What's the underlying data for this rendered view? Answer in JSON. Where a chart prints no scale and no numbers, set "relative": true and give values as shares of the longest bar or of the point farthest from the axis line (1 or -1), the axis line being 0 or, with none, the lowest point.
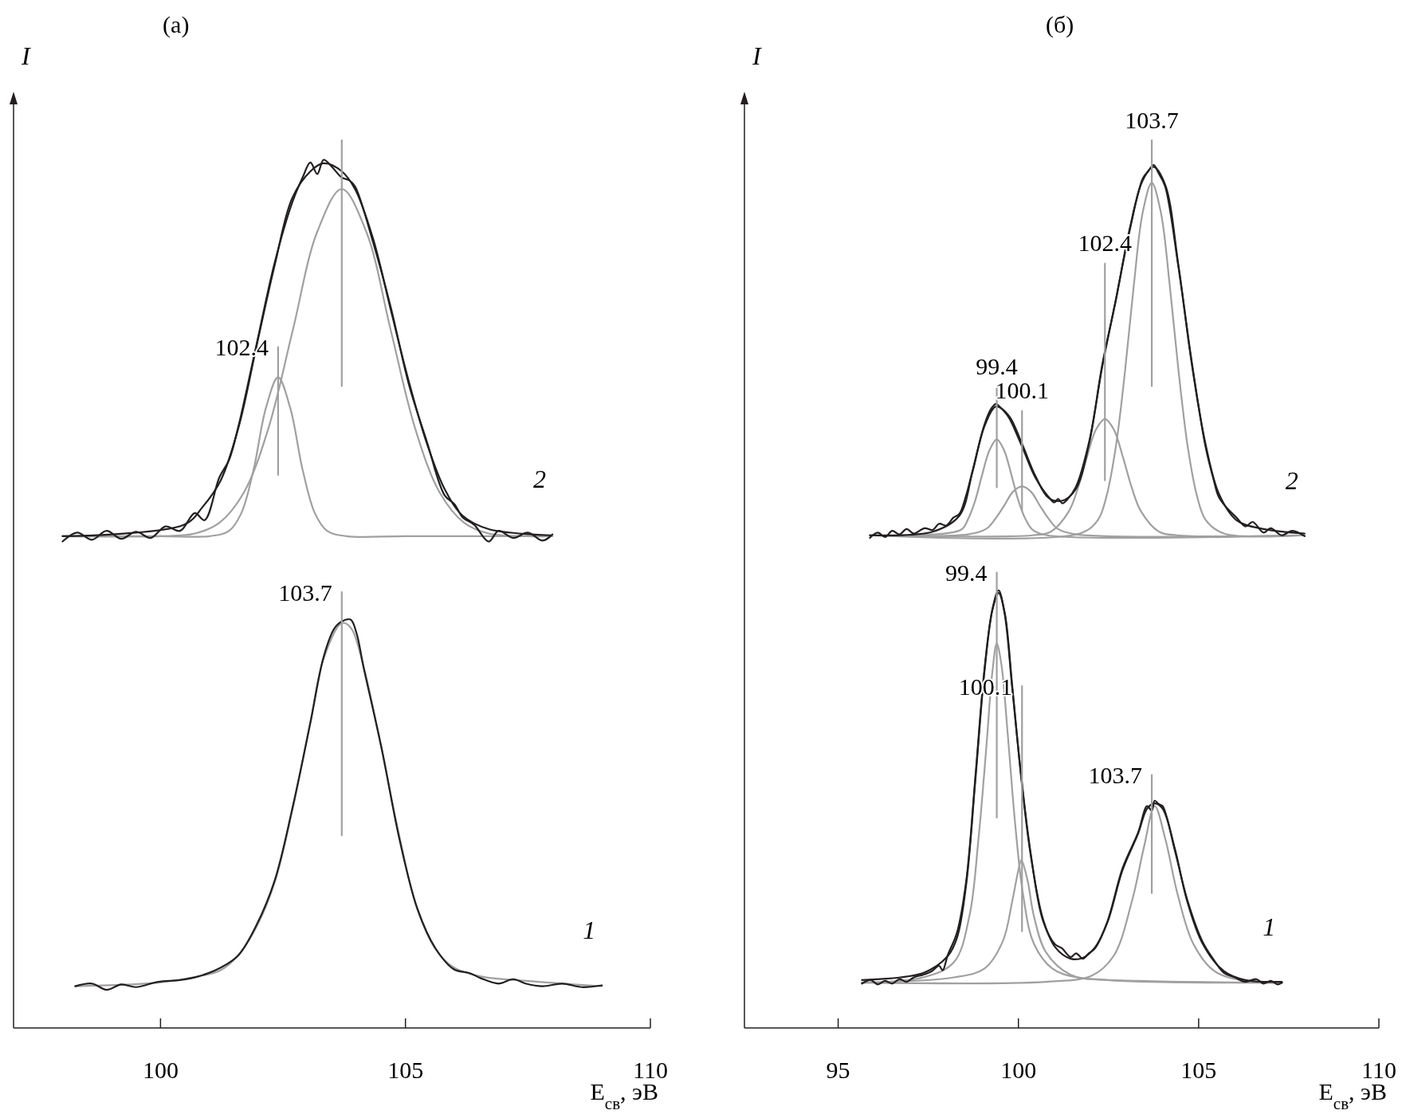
{
  "chart_data": [
    {
      "type": "line",
      "title": "(а)",
      "xlabel": "E$_{св}$, эВ",
      "ylabel": "I",
      "relative": true,
      "xlim": [
        97,
        110
      ],
      "xticks": [
        100,
        105,
        110
      ],
      "series": [
        {
          "color": "#a0a0a0",
          "x": [
            98.0,
            100,
            101,
            101.4,
            101.65,
            101.9,
            102.15,
            102.4,
            102.65,
            102.9,
            103.15,
            103.4,
            103.8,
            105,
            108.0
          ],
          "values": [
            0.554,
            0.554,
            0.554,
            0.56,
            0.58,
            0.629,
            0.698,
            0.733,
            0.698,
            0.629,
            0.58,
            0.56,
            0.554,
            0.554,
            0.554
          ]
        },
        {
          "color": "#a0a0a0",
          "x": [
            98.0,
            100,
            100.7,
            101.2,
            101.7,
            102.2,
            102.7,
            103.2,
            103.7,
            104.2,
            104.7,
            105.2,
            105.7,
            106.2,
            106.7,
            107.5,
            108.0
          ],
          "values": [
            0.554,
            0.554,
            0.557,
            0.569,
            0.603,
            0.675,
            0.786,
            0.897,
            0.945,
            0.897,
            0.786,
            0.675,
            0.603,
            0.569,
            0.557,
            0.554,
            0.554
          ]
        },
        {
          "color": "#231f20",
          "x": [
            98.0,
            100.49,
            100.86,
            101.23,
            101.6,
            101.96,
            102.33,
            102.69,
            103.06,
            103.33,
            103.7,
            103.97,
            104.34,
            104.7,
            105.07,
            105.44,
            105.8,
            106.17,
            106.7,
            107.96
          ],
          "values": [
            0.554,
            0.567,
            0.587,
            0.617,
            0.678,
            0.768,
            0.859,
            0.935,
            0.965,
            0.974,
            0.965,
            0.945,
            0.889,
            0.809,
            0.728,
            0.658,
            0.607,
            0.577,
            0.562,
            0.555
          ]
        },
        {
          "name": "2",
          "color": "#231f20",
          "x": [
            98.0,
            98.3,
            98.6,
            98.9,
            99.2,
            99.5,
            99.8,
            100.1,
            100.4,
            100.7,
            100.9,
            101.2,
            101.4,
            101.6,
            101.96,
            102.33,
            102.69,
            102.9,
            103.06,
            103.2,
            103.33,
            103.5,
            103.7,
            103.85,
            103.97,
            104.34,
            104.7,
            105.07,
            105.44,
            105.8,
            106.0,
            106.17,
            106.4,
            106.7,
            106.9,
            107.2,
            107.5,
            107.8,
            108.0
          ],
          "values": [
            0.548,
            0.558,
            0.55,
            0.56,
            0.551,
            0.559,
            0.552,
            0.565,
            0.56,
            0.58,
            0.572,
            0.62,
            0.64,
            0.68,
            0.77,
            0.862,
            0.93,
            0.958,
            0.975,
            0.962,
            0.978,
            0.97,
            0.958,
            0.955,
            0.948,
            0.885,
            0.812,
            0.725,
            0.66,
            0.6,
            0.59,
            0.575,
            0.567,
            0.548,
            0.56,
            0.552,
            0.558,
            0.549,
            0.556
          ]
        },
        {
          "color": "#a0a0a0",
          "x": [
            98.26,
            99.95,
            100.77,
            101.23,
            101.59,
            101.96,
            102.33,
            102.69,
            103.06,
            103.33,
            103.7,
            103.88,
            104.15,
            104.51,
            104.88,
            105.24,
            105.61,
            105.99,
            106.54,
            107.45,
            109.01
          ],
          "values": [
            0.047,
            0.051,
            0.058,
            0.065,
            0.082,
            0.114,
            0.164,
            0.245,
            0.345,
            0.416,
            0.456,
            0.451,
            0.406,
            0.315,
            0.215,
            0.134,
            0.089,
            0.068,
            0.058,
            0.053,
            0.047
          ]
        },
        {
          "name": "1",
          "color": "#231f20",
          "x": [
            98.26,
            98.6,
            98.9,
            99.2,
            99.5,
            99.95,
            100.4,
            100.77,
            101.23,
            101.59,
            101.96,
            102.33,
            102.69,
            103.06,
            103.33,
            103.55,
            103.7,
            103.88,
            104.0,
            104.15,
            104.51,
            104.88,
            105.24,
            105.61,
            105.99,
            106.3,
            106.54,
            106.9,
            107.2,
            107.45,
            107.8,
            108.2,
            108.6,
            109.01
          ],
          "values": [
            0.047,
            0.05,
            0.043,
            0.049,
            0.046,
            0.052,
            0.054,
            0.058,
            0.068,
            0.082,
            0.116,
            0.166,
            0.247,
            0.344,
            0.418,
            0.45,
            0.458,
            0.46,
            0.445,
            0.405,
            0.316,
            0.212,
            0.135,
            0.09,
            0.066,
            0.062,
            0.056,
            0.05,
            0.055,
            0.05,
            0.047,
            0.05,
            0.046,
            0.048
          ]
        },
        {
          "color": "#a0a0a0",
          "x": [
            103.7,
            103.7
          ],
          "values": [
            1.0,
            0.723
          ]
        },
        {
          "color": "#a0a0a0",
          "x": [
            102.4,
            102.4
          ],
          "values": [
            0.767,
            0.623
          ]
        },
        {
          "color": "#a0a0a0",
          "x": [
            103.7,
            103.7
          ],
          "values": [
            0.491,
            0.217
          ]
        }
      ],
      "annotations": [
        {
          "text": "102.4",
          "x": 102.4,
          "y": 0.767
        },
        {
          "text": "103.7",
          "x": 103.7,
          "y": 0.491
        }
      ]
    },
    {
      "type": "line",
      "title": "(б)",
      "xlabel": "E$_{св}$, эВ",
      "ylabel": "I",
      "relative": true,
      "xlim": [
        92.4,
        110
      ],
      "xticks": [
        95,
        100,
        105,
        110
      ],
      "series": [
        {
          "color": "#a0a0a0",
          "x": [
            95.88,
            98.4,
            98.6,
            98.8,
            99.0,
            99.2,
            99.4,
            99.6,
            99.8,
            100.0,
            100.2,
            100.4,
            100.8,
            107.94
          ],
          "values": [
            0.555,
            0.561,
            0.573,
            0.594,
            0.624,
            0.651,
            0.663,
            0.651,
            0.624,
            0.594,
            0.573,
            0.561,
            0.555,
            0.555
          ]
        },
        {
          "color": "#a0a0a0",
          "x": [
            95.88,
            98.6,
            99.1,
            99.35,
            99.6,
            99.85,
            100.1,
            100.35,
            100.6,
            100.85,
            101.1,
            101.6,
            107.94
          ],
          "values": [
            0.555,
            0.556,
            0.562,
            0.573,
            0.588,
            0.604,
            0.61,
            0.604,
            0.588,
            0.573,
            0.562,
            0.556,
            0.555
          ]
        },
        {
          "color": "#a0a0a0",
          "x": [
            95.88,
            100.4,
            100.9,
            101.4,
            101.65,
            101.9,
            102.15,
            102.4,
            102.65,
            102.9,
            103.15,
            103.4,
            103.9,
            104.4,
            107.94
          ],
          "values": [
            0.555,
            0.555,
            0.559,
            0.582,
            0.608,
            0.643,
            0.674,
            0.686,
            0.674,
            0.643,
            0.608,
            0.582,
            0.559,
            0.555,
            0.555
          ]
        },
        {
          "color": "#a0a0a0",
          "x": [
            95.88,
            101.7,
            102.2,
            102.45,
            102.7,
            102.95,
            103.2,
            103.45,
            103.7,
            103.95,
            104.2,
            104.45,
            104.7,
            104.95,
            105.2,
            105.7,
            107.94
          ],
          "values": [
            0.555,
            0.557,
            0.572,
            0.6,
            0.654,
            0.737,
            0.836,
            0.919,
            0.952,
            0.919,
            0.836,
            0.737,
            0.654,
            0.6,
            0.572,
            0.557,
            0.555
          ]
        },
        {
          "color": "#231f20",
          "x": [
            95.88,
            97.62,
            98.36,
            98.73,
            99.06,
            99.38,
            99.73,
            100.1,
            100.47,
            100.84,
            101.22,
            101.59,
            101.96,
            102.33,
            102.7,
            103.08,
            103.45,
            103.75,
            104.07,
            104.44,
            104.81,
            105.19,
            105.56,
            106.05,
            106.8,
            107.94
          ],
          "values": [
            0.555,
            0.559,
            0.577,
            0.627,
            0.678,
            0.7,
            0.69,
            0.658,
            0.622,
            0.597,
            0.594,
            0.607,
            0.658,
            0.748,
            0.819,
            0.899,
            0.955,
            0.97,
            0.95,
            0.859,
            0.748,
            0.658,
            0.602,
            0.572,
            0.562,
            0.557
          ]
        },
        {
          "name": "2",
          "color": "#231f20",
          "x": [
            95.88,
            96.1,
            96.3,
            96.5,
            96.7,
            96.9,
            97.1,
            97.4,
            97.62,
            97.8,
            98.0,
            98.2,
            98.36,
            98.55,
            98.73,
            99.06,
            99.25,
            99.38,
            99.5,
            99.73,
            100.1,
            100.47,
            100.84,
            101.0,
            101.1,
            101.22,
            101.35,
            101.59,
            101.96,
            102.33,
            102.7,
            103.08,
            103.45,
            103.6,
            103.75,
            103.9,
            104.07,
            104.44,
            104.81,
            105.19,
            105.4,
            105.56,
            105.8,
            106.05,
            106.3,
            106.5,
            106.8,
            107.0,
            107.3,
            107.6,
            107.94
          ],
          "values": [
            0.552,
            0.558,
            0.553,
            0.56,
            0.556,
            0.562,
            0.557,
            0.563,
            0.561,
            0.568,
            0.566,
            0.575,
            0.579,
            0.6,
            0.628,
            0.68,
            0.698,
            0.703,
            0.699,
            0.688,
            0.655,
            0.62,
            0.598,
            0.592,
            0.596,
            0.591,
            0.595,
            0.609,
            0.66,
            0.746,
            0.82,
            0.897,
            0.957,
            0.965,
            0.972,
            0.962,
            0.948,
            0.857,
            0.75,
            0.655,
            0.62,
            0.598,
            0.585,
            0.575,
            0.565,
            0.57,
            0.558,
            0.563,
            0.555,
            0.56,
            0.554
          ]
        },
        {
          "color": "#a0a0a0",
          "x": [
            95.66,
            97.36,
            98.21,
            98.64,
            98.89,
            99.11,
            99.28,
            99.4,
            99.53,
            99.7,
            99.91,
            100.13,
            100.43,
            100.94,
            101.62,
            103.32,
            107.31
          ],
          "values": [
            0.051,
            0.057,
            0.074,
            0.126,
            0.212,
            0.316,
            0.402,
            0.433,
            0.409,
            0.333,
            0.23,
            0.15,
            0.095,
            0.067,
            0.057,
            0.053,
            0.051
          ]
        },
        {
          "color": "#a0a0a0",
          "x": [
            95.66,
            98.21,
            99.06,
            99.57,
            99.83,
            100.0,
            100.08,
            100.25,
            100.43,
            100.77,
            101.45,
            102.47,
            107.31
          ],
          "values": [
            0.051,
            0.057,
            0.067,
            0.098,
            0.143,
            0.178,
            0.189,
            0.167,
            0.126,
            0.085,
            0.06,
            0.054,
            0.051
          ]
        },
        {
          "color": "#a0a0a0",
          "x": [
            95.66,
            100.77,
            102.04,
            102.64,
            103.15,
            103.49,
            103.78,
            104.08,
            104.42,
            104.85,
            105.44,
            106.29,
            107.31
          ],
          "values": [
            0.051,
            0.052,
            0.059,
            0.081,
            0.143,
            0.205,
            0.25,
            0.212,
            0.15,
            0.095,
            0.064,
            0.053,
            0.051
          ]
        },
        {
          "color": "#231f20",
          "x": [
            95.66,
            97.36,
            98.04,
            98.3,
            98.55,
            98.81,
            99.06,
            99.28,
            99.45,
            99.62,
            99.83,
            100.08,
            100.34,
            100.68,
            101.02,
            101.45,
            101.79,
            102.13,
            102.47,
            102.89,
            103.32,
            103.57,
            103.78,
            104.0,
            104.34,
            104.68,
            105.11,
            105.7,
            106.29,
            107.31
          ],
          "values": [
            0.054,
            0.062,
            0.081,
            0.102,
            0.161,
            0.281,
            0.402,
            0.471,
            0.49,
            0.468,
            0.385,
            0.281,
            0.195,
            0.123,
            0.091,
            0.078,
            0.079,
            0.091,
            0.119,
            0.178,
            0.219,
            0.247,
            0.253,
            0.247,
            0.202,
            0.143,
            0.095,
            0.064,
            0.054,
            0.052
          ]
        },
        {
          "name": "1",
          "color": "#231f20",
          "x": [
            95.66,
            95.9,
            96.1,
            96.3,
            96.5,
            96.7,
            96.9,
            97.1,
            97.36,
            97.6,
            97.8,
            97.9,
            98.04,
            98.3,
            98.55,
            98.81,
            99.06,
            99.28,
            99.45,
            99.62,
            99.83,
            100.08,
            100.34,
            100.68,
            101.02,
            101.2,
            101.45,
            101.6,
            101.79,
            101.95,
            102.13,
            102.47,
            102.89,
            103.32,
            103.57,
            103.7,
            103.78,
            103.9,
            104.0,
            104.34,
            104.68,
            105.11,
            105.4,
            105.7,
            106.0,
            106.29,
            106.6,
            106.8,
            107.0,
            107.2,
            107.31
          ],
          "values": [
            0.05,
            0.054,
            0.049,
            0.053,
            0.05,
            0.055,
            0.052,
            0.057,
            0.06,
            0.064,
            0.07,
            0.065,
            0.082,
            0.108,
            0.165,
            0.285,
            0.405,
            0.472,
            0.493,
            0.466,
            0.382,
            0.283,
            0.197,
            0.121,
            0.094,
            0.09,
            0.08,
            0.084,
            0.078,
            0.084,
            0.09,
            0.12,
            0.18,
            0.22,
            0.25,
            0.245,
            0.256,
            0.252,
            0.25,
            0.2,
            0.145,
            0.097,
            0.078,
            0.062,
            0.057,
            0.052,
            0.055,
            0.05,
            0.053,
            0.049,
            0.051
          ]
        },
        {
          "color": "#a0a0a0",
          "x": [
            99.4,
            99.4
          ],
          "values": [
            0.722,
            0.609
          ]
        },
        {
          "color": "#a0a0a0",
          "x": [
            100.1,
            100.1
          ],
          "values": [
            0.695,
            0.583
          ]
        },
        {
          "color": "#a0a0a0",
          "x": [
            102.4,
            102.4
          ],
          "values": [
            0.861,
            0.617
          ]
        },
        {
          "color": "#a0a0a0",
          "x": [
            103.7,
            103.7
          ],
          "values": [
            1.0,
            0.723
          ]
        },
        {
          "color": "#a0a0a0",
          "x": [
            99.4,
            99.4
          ],
          "values": [
            0.513,
            0.237
          ]
        },
        {
          "color": "#a0a0a0",
          "x": [
            100.1,
            100.1
          ],
          "values": [
            0.385,
            0.109
          ]
        },
        {
          "color": "#a0a0a0",
          "x": [
            103.7,
            103.7
          ],
          "values": [
            0.285,
            0.152
          ]
        }
      ],
      "annotations": [
        {
          "text": "99.4",
          "x": 99.4,
          "y": 0.722
        },
        {
          "text": "100.1",
          "x": 100.1,
          "y": 0.695
        },
        {
          "text": "102.4",
          "x": 102.4,
          "y": 0.861
        },
        {
          "text": "103.7",
          "x": 103.7,
          "y": 1.0
        },
        {
          "text": "99.4",
          "x": 99.4,
          "y": 0.513
        },
        {
          "text": "100.1",
          "x": 100.1,
          "y": 0.385
        },
        {
          "text": "103.7",
          "x": 103.7,
          "y": 0.285
        }
      ]
    }
  ]
}
